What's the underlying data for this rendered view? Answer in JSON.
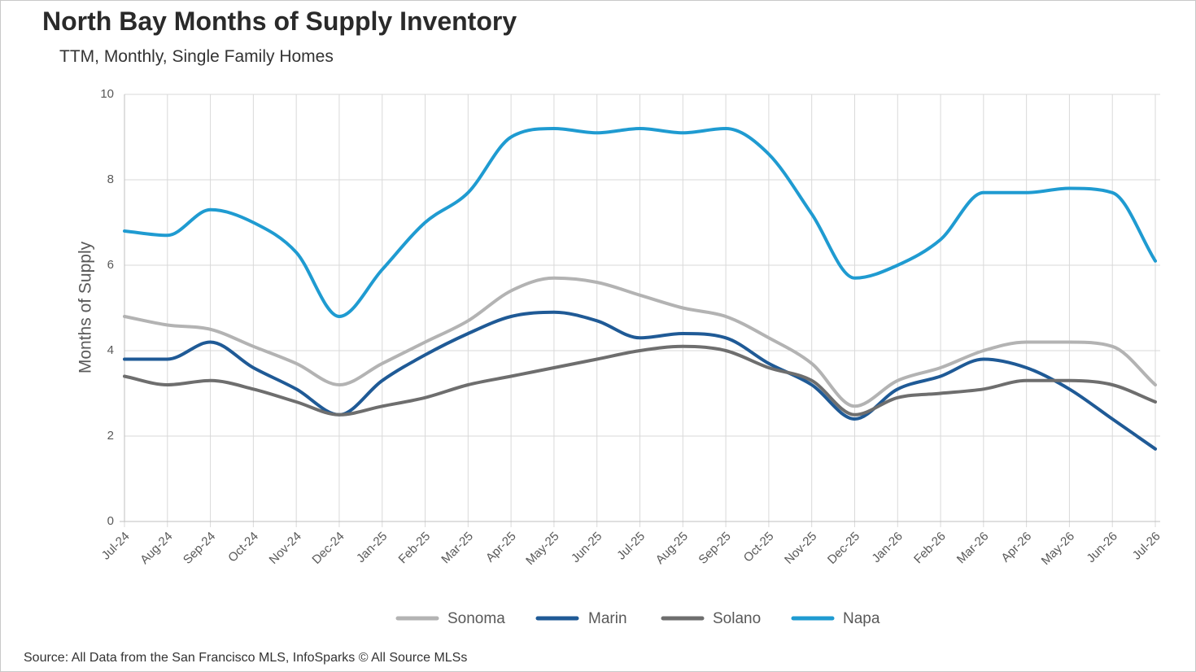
{
  "title": "North Bay Months of Supply Inventory",
  "subtitle": "TTM, Monthly, Single Family Homes",
  "source": "Source: All Data from the San Francisco MLS, InfoSparks © All Source MLSs",
  "chart_data": {
    "type": "line",
    "title": "North Bay Months of Supply Inventory",
    "subtitle": "TTM, Monthly, Single Family Homes",
    "xlabel": "",
    "ylabel": "Months of Supply",
    "ylim": [
      0,
      10
    ],
    "yticks": [
      0,
      2,
      4,
      6,
      8,
      10
    ],
    "grid": true,
    "legend_position": "bottom",
    "categories": [
      "Jul-24",
      "Aug-24",
      "Sep-24",
      "Oct-24",
      "Nov-24",
      "Dec-24",
      "Jan-25",
      "Feb-25",
      "Mar-25",
      "Apr-25",
      "May-25",
      "Jun-25",
      "Jul-25",
      "Aug-25",
      "Sep-25",
      "Oct-25",
      "Nov-25",
      "Dec-25",
      "Jan-26",
      "Feb-26",
      "Mar-26",
      "Apr-26",
      "May-26",
      "Jun-26",
      "Jul-26"
    ],
    "series": [
      {
        "name": "Sonoma",
        "color": "#b3b3b3",
        "values": [
          4.8,
          4.6,
          4.5,
          4.1,
          3.7,
          3.2,
          3.7,
          4.2,
          4.7,
          5.4,
          5.7,
          5.6,
          5.3,
          5.0,
          4.8,
          4.3,
          3.7,
          2.7,
          3.3,
          3.6,
          4.0,
          4.2,
          4.2,
          4.1,
          3.2
        ]
      },
      {
        "name": "Marin",
        "color": "#1f5a96",
        "values": [
          3.8,
          3.8,
          4.2,
          3.6,
          3.1,
          2.5,
          3.3,
          3.9,
          4.4,
          4.8,
          4.9,
          4.7,
          4.3,
          4.4,
          4.3,
          3.7,
          3.2,
          2.4,
          3.1,
          3.4,
          3.8,
          3.6,
          3.1,
          2.4,
          1.7
        ]
      },
      {
        "name": "Solano",
        "color": "#6e6e6e",
        "values": [
          3.4,
          3.2,
          3.3,
          3.1,
          2.8,
          2.5,
          2.7,
          2.9,
          3.2,
          3.4,
          3.6,
          3.8,
          4.0,
          4.1,
          4.0,
          3.6,
          3.3,
          2.5,
          2.9,
          3.0,
          3.1,
          3.3,
          3.3,
          3.2,
          2.8
        ]
      },
      {
        "name": "Napa",
        "color": "#1f9bd1",
        "values": [
          6.8,
          6.7,
          7.3,
          7.0,
          6.3,
          4.8,
          5.9,
          7.0,
          7.7,
          9.0,
          9.2,
          9.1,
          9.2,
          9.1,
          9.2,
          8.6,
          7.2,
          5.7,
          6.0,
          6.6,
          7.7,
          7.7,
          7.8,
          7.7,
          6.1
        ]
      }
    ]
  }
}
